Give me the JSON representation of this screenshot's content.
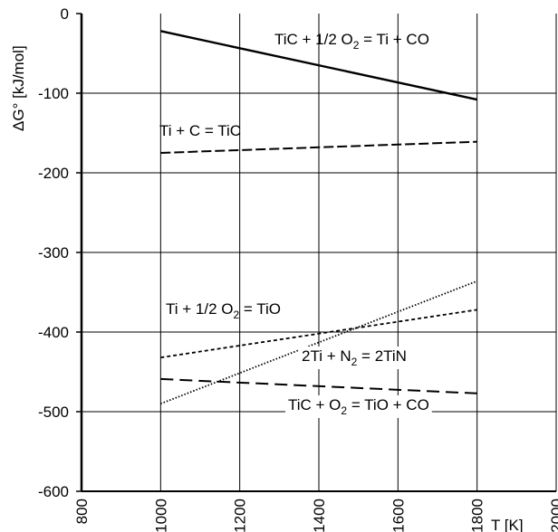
{
  "chart_data": {
    "type": "line",
    "title": "",
    "xlabel": "T [K]",
    "ylabel": "ΔG° [kJ/mol]",
    "xlim": [
      800,
      2000
    ],
    "ylim": [
      -600,
      0
    ],
    "xticks": [
      800,
      1000,
      1200,
      1400,
      1600,
      1800,
      2000
    ],
    "yticks": [
      0,
      -100,
      -200,
      -300,
      -400,
      -500,
      -600
    ],
    "grid": true,
    "legend": "none",
    "series": [
      {
        "name": "TiC + 1/2 O2 = Ti + CO",
        "label_main": "TiC + 1/2 O",
        "label_sub": "2",
        "label_rest": " = Ti + CO",
        "style": "solid",
        "x": [
          1000,
          1800
        ],
        "y": [
          -22,
          -108
        ]
      },
      {
        "name": "Ti + C = TiC",
        "label_main": "Ti + C = TiC",
        "label_sub": "",
        "label_rest": "",
        "style": "dashed",
        "x": [
          1000,
          1800
        ],
        "y": [
          -175,
          -161
        ]
      },
      {
        "name": "Ti + 1/2 O2 = TiO",
        "label_main": "Ti + 1/2 O",
        "label_sub": "2",
        "label_rest": " = TiO",
        "style": "short-dash",
        "x": [
          1000,
          1800
        ],
        "y": [
          -432,
          -372
        ]
      },
      {
        "name": "2Ti + N2 = 2TiN",
        "label_main": "2Ti + N",
        "label_sub": "2",
        "label_rest": " = 2TiN",
        "style": "dotted",
        "x": [
          1000,
          1800
        ],
        "y": [
          -490,
          -336
        ]
      },
      {
        "name": "TiC + O2 = TiO + CO",
        "label_main": "TiC + O",
        "label_sub": "2",
        "label_rest": " = TiO + CO",
        "style": "long-dash",
        "x": [
          1000,
          1800
        ],
        "y": [
          -459,
          -477
        ]
      }
    ]
  }
}
